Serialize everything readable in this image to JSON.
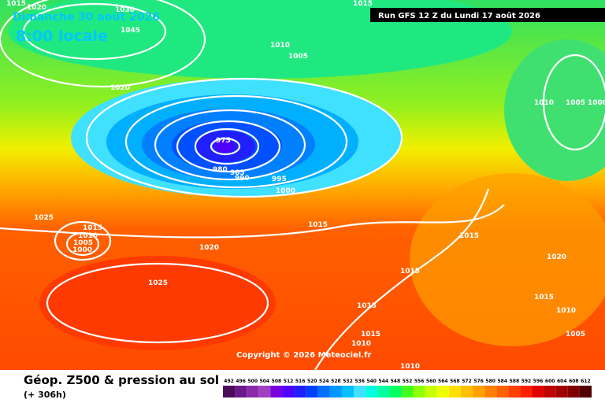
{
  "header": {
    "date": "Dimanche 30 août 2026",
    "time": "8:00 locale",
    "run": "Run GFS 12 Z du Lundi 17 août 2026"
  },
  "copyright": "Copyright © 2026 Meteociel.fr",
  "footer": {
    "title": "Géop. Z500 & pression au sol",
    "lead": "(+ 306h)"
  },
  "isobar_labels": [
    1015,
    1020,
    1030,
    1045,
    1010,
    1005,
    1020,
    975,
    980,
    985,
    990,
    995,
    1000,
    1025,
    1015,
    1010,
    1005,
    1000,
    1015,
    1020,
    1025,
    1015,
    1015,
    1015,
    1015,
    1010,
    1010,
    1010,
    1005,
    1000,
    1020,
    1015,
    1010,
    1005,
    1015
  ],
  "colorbar": {
    "levels": [
      492,
      496,
      500,
      504,
      508,
      512,
      516,
      520,
      524,
      528,
      532,
      536,
      540,
      544,
      548,
      552,
      556,
      560,
      564,
      568,
      572,
      576,
      580,
      584,
      588,
      592,
      596,
      600,
      604,
      608,
      612
    ],
    "colors": [
      "#4b0a5a",
      "#6a1a8a",
      "#8a2aa8",
      "#a040c0",
      "#7a00e0",
      "#5000ff",
      "#2020ff",
      "#0040ff",
      "#0070ff",
      "#0098ff",
      "#00c0ff",
      "#40e0ff",
      "#00ffe0",
      "#00ffa0",
      "#00ff60",
      "#40ff20",
      "#90ff00",
      "#c8ff00",
      "#f0ff00",
      "#ffe000",
      "#ffc000",
      "#ffa000",
      "#ff8000",
      "#ff6000",
      "#ff4000",
      "#ff2000",
      "#e00000",
      "#c00000",
      "#a00000",
      "#800000",
      "#500000"
    ]
  }
}
